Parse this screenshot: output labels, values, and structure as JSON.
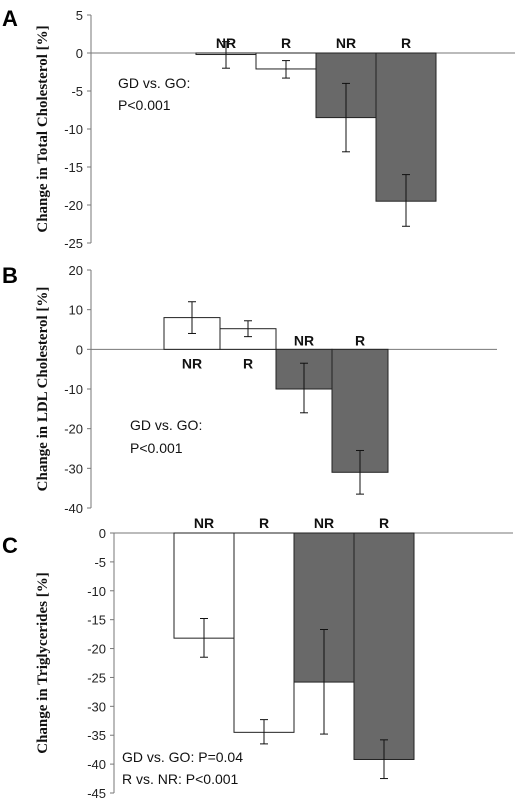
{
  "colors": {
    "open": "#ffffff",
    "filled": "#696969",
    "outline": "#222222"
  },
  "chart_data": [
    {
      "panel": "A",
      "type": "bar",
      "ylabel": "Change in Total Cholesterol [%]",
      "ylim": [
        -25,
        5
      ],
      "yticks": [
        "5",
        "0",
        "-5",
        "-10",
        "-15",
        "-20",
        "-25"
      ],
      "bars": [
        {
          "label": "NR",
          "value": -0.2,
          "err_low": -2.0,
          "err_high": 1.5,
          "style": "open"
        },
        {
          "label": "R",
          "value": -2.1,
          "err_low": -3.3,
          "err_high": -1.0,
          "style": "open"
        },
        {
          "label": "NR",
          "value": -8.5,
          "err_low": -13.0,
          "err_high": -4.0,
          "style": "filled"
        },
        {
          "label": "R",
          "value": -19.5,
          "err_low": -22.8,
          "err_high": -16.0,
          "style": "filled"
        }
      ],
      "annotations": [
        "GD vs. GO:",
        "P<0.001"
      ]
    },
    {
      "panel": "B",
      "type": "bar",
      "ylabel": "Change in LDL Cholesterol [%]",
      "ylim": [
        -40,
        20
      ],
      "yticks": [
        "20",
        "10",
        "0",
        "-10",
        "-20",
        "-30",
        "-40"
      ],
      "bars": [
        {
          "label": "NR",
          "value": 8.0,
          "err_low": 4.0,
          "err_high": 12.0,
          "style": "open"
        },
        {
          "label": "R",
          "value": 5.2,
          "err_low": 3.2,
          "err_high": 7.2,
          "style": "open"
        },
        {
          "label": "NR",
          "value": -10.0,
          "err_low": -16.0,
          "err_high": -3.5,
          "style": "filled"
        },
        {
          "label": "R",
          "value": -31.0,
          "err_low": -36.5,
          "err_high": -25.5,
          "style": "filled"
        }
      ],
      "annotations": [
        "GD vs. GO:",
        "P<0.001"
      ]
    },
    {
      "panel": "C",
      "type": "bar",
      "ylabel": "Change in Triglycerides [%]",
      "ylim": [
        -45,
        0
      ],
      "yticks": [
        "0",
        "-5",
        "-10",
        "-15",
        "-20",
        "-25",
        "-30",
        "-35",
        "-40",
        "-45"
      ],
      "bars": [
        {
          "label": "NR",
          "value": -18.2,
          "err_low": -21.5,
          "err_high": -14.8,
          "style": "open"
        },
        {
          "label": "R",
          "value": -34.5,
          "err_low": -36.5,
          "err_high": -32.3,
          "style": "open"
        },
        {
          "label": "NR",
          "value": -25.8,
          "err_low": -34.8,
          "err_high": -16.7,
          "style": "filled"
        },
        {
          "label": "R",
          "value": -39.2,
          "err_low": -42.5,
          "err_high": -35.8,
          "style": "filled"
        }
      ],
      "annotations": [
        "GD vs. GO:  P=0.04",
        "R vs. NR: P<0.001"
      ]
    }
  ]
}
